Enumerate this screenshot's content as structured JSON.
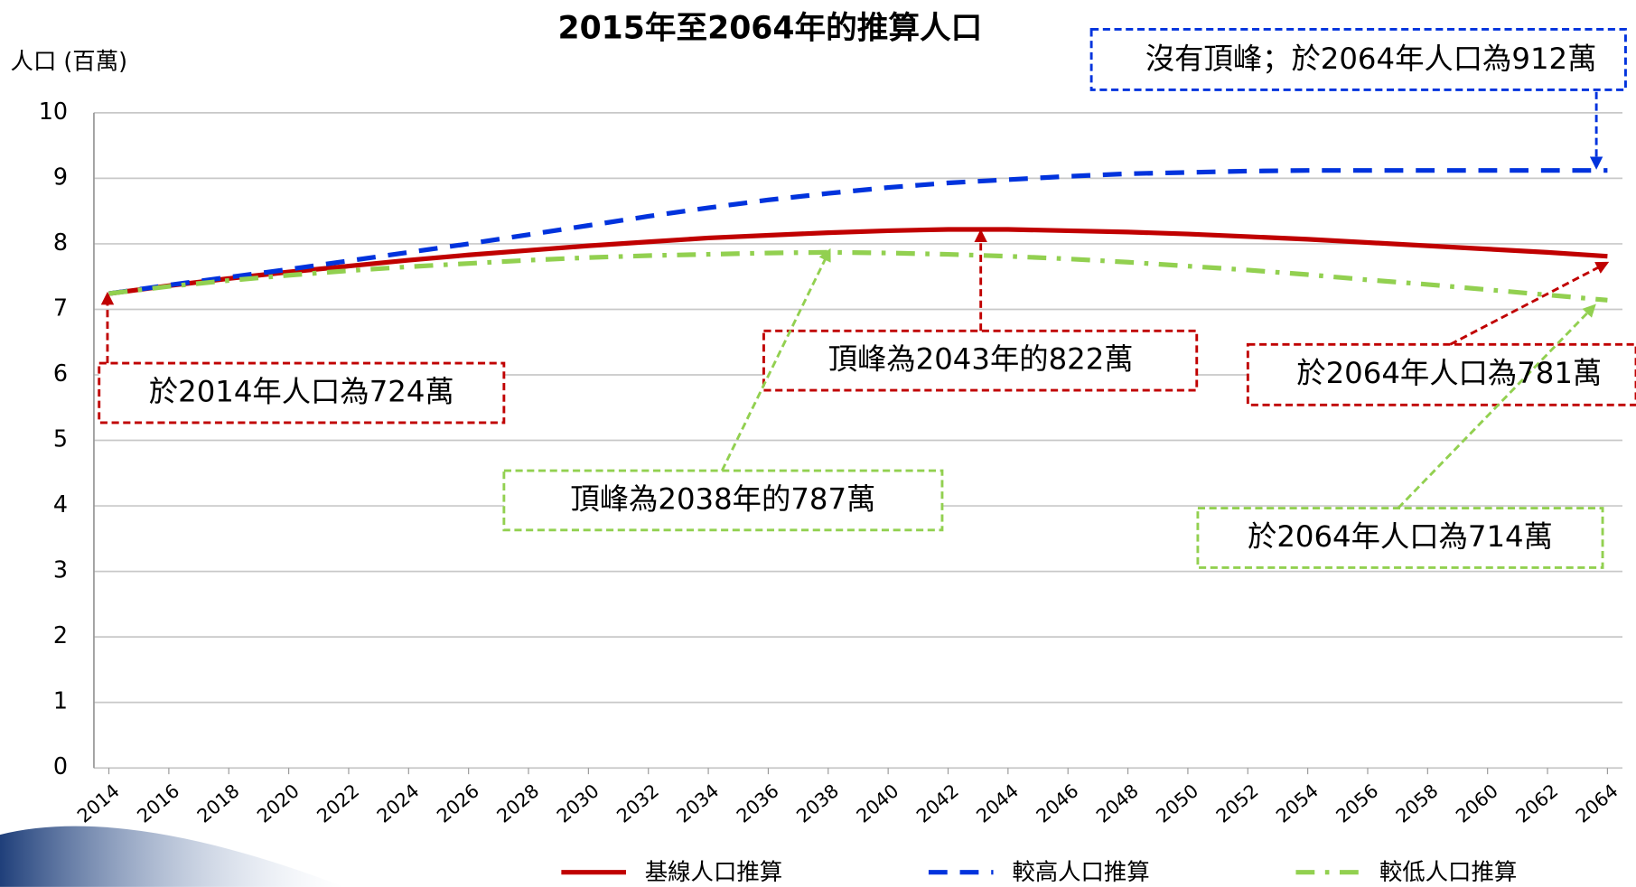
{
  "chart_data": {
    "type": "line",
    "title": "2015年至2064年的推算人口",
    "y_label": "人口 (百萬)",
    "x": [
      2014,
      2016,
      2018,
      2020,
      2022,
      2024,
      2026,
      2028,
      2030,
      2032,
      2034,
      2036,
      2038,
      2040,
      2042,
      2044,
      2046,
      2048,
      2050,
      2052,
      2054,
      2056,
      2058,
      2060,
      2062,
      2064
    ],
    "xlim": [
      2013.5,
      2064.5
    ],
    "xticks": [
      2014,
      2016,
      2018,
      2020,
      2022,
      2024,
      2026,
      2028,
      2030,
      2032,
      2034,
      2036,
      2038,
      2040,
      2042,
      2044,
      2046,
      2048,
      2050,
      2052,
      2054,
      2056,
      2058,
      2060,
      2062,
      2064
    ],
    "ylim": [
      0,
      10
    ],
    "yticks": [
      0,
      1,
      2,
      3,
      4,
      5,
      6,
      7,
      8,
      9,
      10
    ],
    "grid": true,
    "series": [
      {
        "name": "基線人口推算",
        "color": "#c00000",
        "dash": "solid",
        "values": [
          7.24,
          7.36,
          7.47,
          7.57,
          7.66,
          7.75,
          7.83,
          7.9,
          7.97,
          8.03,
          8.09,
          8.13,
          8.17,
          8.2,
          8.22,
          8.22,
          8.2,
          8.18,
          8.15,
          8.11,
          8.07,
          8.02,
          7.97,
          7.92,
          7.87,
          7.81
        ]
      },
      {
        "name": "較高人口推算",
        "color": "#0033dd",
        "dash": "dash",
        "values": [
          7.24,
          7.37,
          7.49,
          7.61,
          7.74,
          7.87,
          8.0,
          8.14,
          8.28,
          8.42,
          8.55,
          8.67,
          8.77,
          8.86,
          8.93,
          8.98,
          9.03,
          9.07,
          9.09,
          9.11,
          9.12,
          9.12,
          9.12,
          9.12,
          9.12,
          9.12
        ]
      },
      {
        "name": "較低人口推算",
        "color": "#92d050",
        "dash": "dashdot",
        "values": [
          7.24,
          7.35,
          7.44,
          7.52,
          7.59,
          7.65,
          7.7,
          7.75,
          7.79,
          7.82,
          7.84,
          7.86,
          7.87,
          7.86,
          7.84,
          7.81,
          7.77,
          7.72,
          7.66,
          7.6,
          7.53,
          7.45,
          7.38,
          7.3,
          7.22,
          7.14
        ]
      }
    ],
    "annotations": [
      "沒有頂峰；於2064年人口為912萬",
      "於2014年人口為724萬",
      "頂峰為2043年的822萬",
      "於2064年人口為781萬",
      "頂峰為2038年的787萬",
      "於2064年人口為714萬"
    ]
  }
}
